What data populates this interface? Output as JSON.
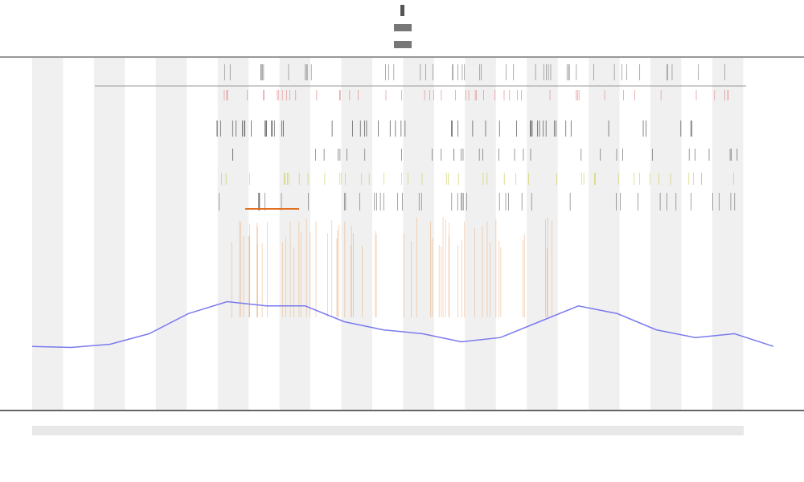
{
  "chart_data": {
    "type": "line",
    "categories": [
      null,
      null,
      null,
      null,
      null,
      null,
      null,
      null,
      null,
      null,
      null,
      null,
      null,
      null,
      null,
      null,
      null,
      null,
      null,
      null
    ],
    "series": [
      {
        "color": "#7a7aee",
        "values": [
          0.18,
          0.177,
          0.186,
          0.216,
          0.273,
          0.307,
          0.295,
          0.295,
          0.25,
          0.227,
          0.216,
          0.193,
          0.205,
          0.25,
          0.295,
          0.273,
          0.227,
          0.205,
          0.216,
          0.18
        ]
      }
    ],
    "ylim": [
      0,
      1
    ]
  }
}
